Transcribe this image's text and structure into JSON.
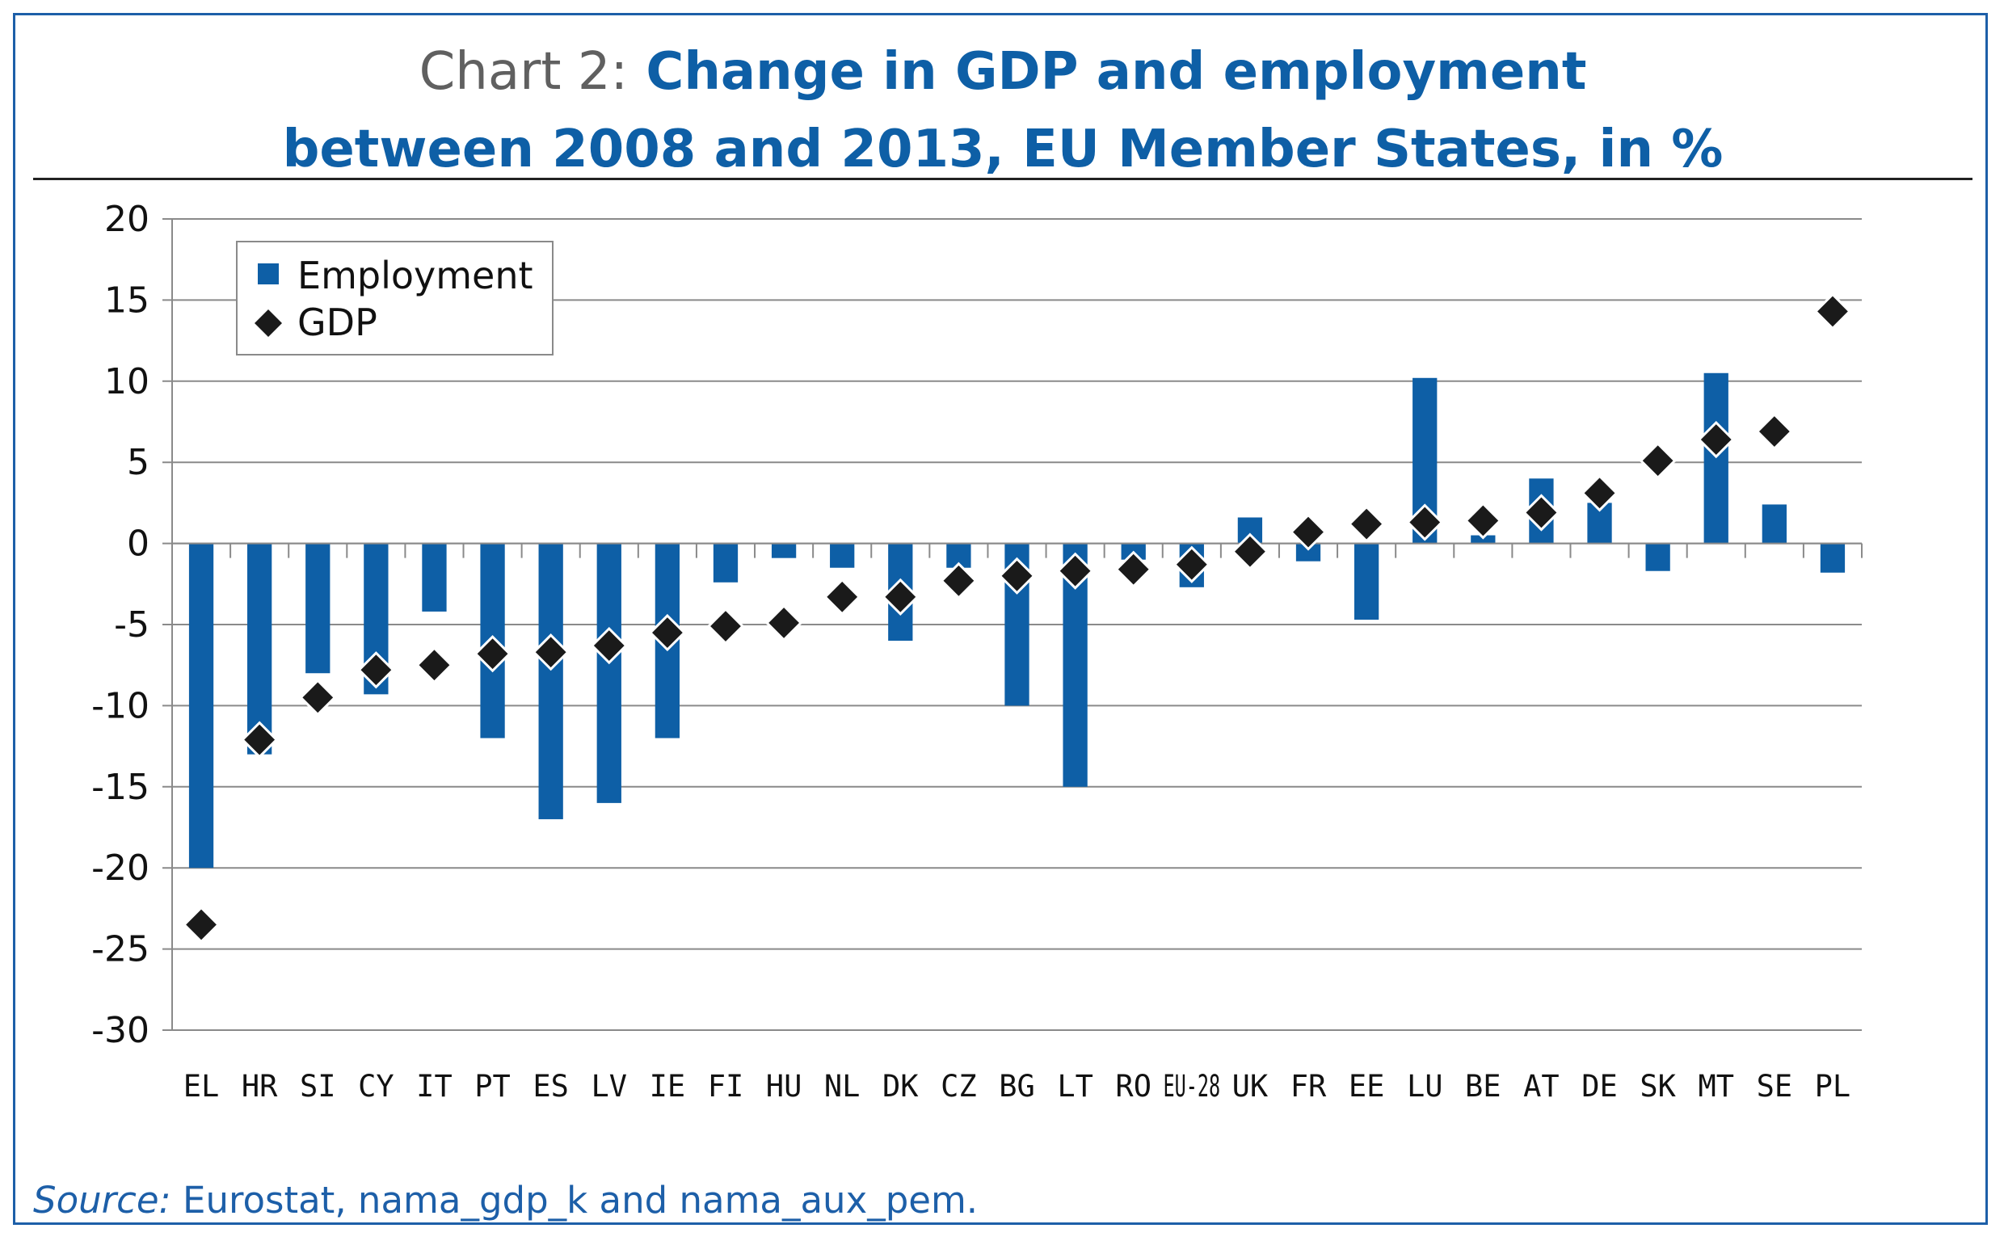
{
  "header": {
    "title_prefix": "Chart 2:",
    "title_line1": " Change in GDP and employment",
    "title_line2": "between 2008 and 2013, EU Member States, in %"
  },
  "source": {
    "label": "Source:",
    "text": " Eurostat, nama_gdp_k and nama_aux_pem."
  },
  "colors": {
    "employment": "#0e5fa6",
    "gdp": "#1a1a1a",
    "grid": "#8a8a8a",
    "frame": "#1d5fa8"
  },
  "chart_data": {
    "type": "bar",
    "categories": [
      "EL",
      "HR",
      "SI",
      "CY",
      "IT",
      "PT",
      "ES",
      "LV",
      "IE",
      "FI",
      "HU",
      "NL",
      "DK",
      "CZ",
      "BG",
      "LT",
      "RO",
      "EU-28",
      "UK",
      "FR",
      "EE",
      "LU",
      "BE",
      "AT",
      "DE",
      "SK",
      "MT",
      "SE",
      "PL"
    ],
    "series": [
      {
        "name": "Employment",
        "kind": "bar",
        "values": [
          -20,
          -13,
          -8,
          -9.3,
          -4.2,
          -12,
          -17,
          -16,
          -12,
          -2.4,
          -0.9,
          -1.5,
          -6,
          -1.5,
          -10,
          -15,
          -1,
          -2.7,
          1.6,
          -1.1,
          -4.7,
          10.2,
          0.5,
          4,
          2.5,
          -1.7,
          10.5,
          2.4,
          -1.8
        ]
      },
      {
        "name": "GDP",
        "kind": "marker",
        "marker": "diamond",
        "values": [
          -23.5,
          -12.1,
          -9.5,
          -7.8,
          -7.5,
          -6.8,
          -6.7,
          -6.3,
          -5.5,
          -5.1,
          -4.9,
          -3.3,
          -3.3,
          -2.3,
          -2.0,
          -1.7,
          -1.6,
          -1.3,
          -0.5,
          0.7,
          1.2,
          1.3,
          1.4,
          1.9,
          3.1,
          5.1,
          6.4,
          6.9,
          14.3
        ]
      }
    ],
    "y_ticks": [
      "20",
      "15",
      "10",
      "5",
      "0",
      "-5",
      "-10",
      "-15",
      "-20",
      "-25",
      "-30"
    ],
    "ylim": [
      -30,
      20
    ],
    "grid": true,
    "legend": "top-left"
  }
}
